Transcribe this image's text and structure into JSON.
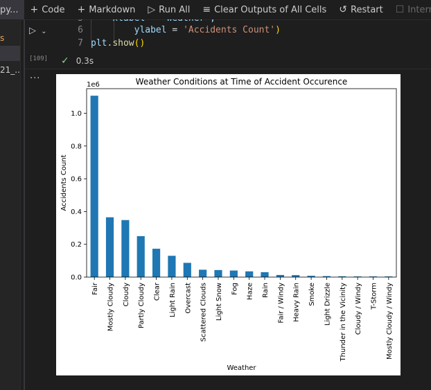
{
  "toolbar": {
    "filename_fragment": "py...",
    "code_label": "Code",
    "markdown_label": "Markdown",
    "run_all_label": "Run All",
    "clear_outputs_label": "Clear Outputs of All Cells",
    "restart_label": "Restart",
    "interrupt_label": "Interrupt"
  },
  "sidebar": {
    "items": [
      "s",
      "",
      "21_..."
    ]
  },
  "cell": {
    "execution_count": "[109]",
    "duration": "0.3s",
    "lines": [
      {
        "number": "5",
        "code": "    xlabel = 'Weather',"
      },
      {
        "number": "6",
        "key": "ylabel",
        "eq": " = ",
        "value": "'Accidents Count'",
        "close": ")"
      },
      {
        "number": "7",
        "obj": "plt",
        "method": "show",
        "parens": "()"
      }
    ]
  },
  "colors": {
    "bar": "#1f77b4",
    "check": "#89d185",
    "background": "#1e1e1e"
  },
  "chart_data": {
    "type": "bar",
    "title": "Weather Conditions at Time of Accident Occurence",
    "xlabel": "Weather",
    "ylabel": "Accidents Count",
    "offset_text": "1e6",
    "ylim": [
      0,
      1.15
    ],
    "yticks": [
      0.0,
      0.2,
      0.4,
      0.6,
      0.8,
      1.0
    ],
    "ytick_labels": [
      "0.0",
      "0.2",
      "0.4",
      "0.6",
      "0.8",
      "1.0"
    ],
    "grid": false,
    "legend": "none",
    "categories": [
      "Fair",
      "Mostly Cloudy",
      "Cloudy",
      "Partly Cloudy",
      "Clear",
      "Light Rain",
      "Overcast",
      "Scattered Clouds",
      "Light Snow",
      "Fog",
      "Haze",
      "Rain",
      "Fair / Windy",
      "Heavy Rain",
      "Smoke",
      "Light Drizzle",
      "Thunder in the Vicinity",
      "Cloudy / Windy",
      "T-Storm",
      "Mostly Cloudy / Windy"
    ],
    "values": [
      1.107,
      0.365,
      0.348,
      0.25,
      0.173,
      0.13,
      0.087,
      0.045,
      0.043,
      0.04,
      0.035,
      0.03,
      0.013,
      0.012,
      0.008,
      0.006,
      0.005,
      0.004,
      0.004,
      0.004
    ]
  }
}
